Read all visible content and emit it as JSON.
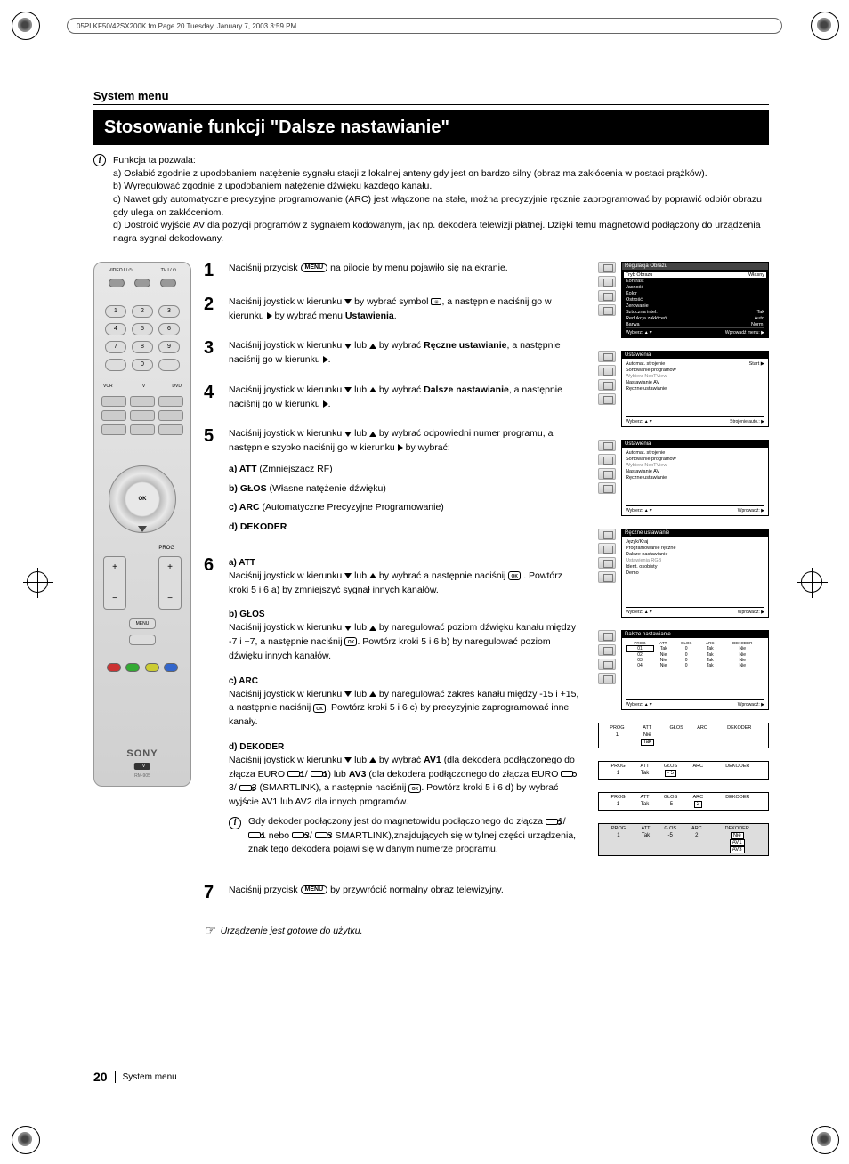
{
  "header_stamp": "05PLKF50/42SX200K.fm  Page 20  Tuesday, January 7, 2003  3:59 PM",
  "section_label": "System menu",
  "title": "Stosowanie funkcji \"Dalsze nastawianie\"",
  "intro_lead": "Funkcja ta pozwala:",
  "intro_a": "a) Osłabić zgodnie z upodobaniem natężenie sygnału stacji z lokalnej anteny gdy jest on bardzo silny (obraz ma zakłócenia w postaci prążków).",
  "intro_b": "b) Wyregulować zgodnie z upodobaniem natężenie dźwięku każdego kanału.",
  "intro_c": "c) Nawet gdy automatyczne precyzyjne programowanie (ARC) jest włączone na stałe, można precyzyjnie ręcznie zaprogramować by poprawić odbiór obrazu gdy ulega on zakłóceniom.",
  "intro_d": "d) Dostroić wyjście AV dla pozycji programów z sygnałem kodowanym, jak np. dekodera telewizji płatnej. Dzięki temu magnetowid podłączony do urządzenia nagra sygnał dekodowany.",
  "step1": "Naciśnij przycisk",
  "step1b": "na pilocie by menu pojawiło się na ekranie.",
  "step2a": "Naciśnij joystick w kierunku",
  "step2b": "by wybrać symbol",
  "step2c": ", a następnie naciśnij go w kierunku",
  "step2d": "by wybrać menu",
  "step2bold": "Ustawienia",
  "step3a": "Naciśnij joystick w kierunku",
  "step3b": "lub",
  "step3c": "by wybrać",
  "step3bold": "Ręczne ustawianie",
  "step3d": ", a następnie naciśnij go w kierunku",
  "step4a": "Naciśnij joystick w kierunku",
  "step4b": "lub",
  "step4c": "by wybrać",
  "step4bold": "Dalsze nastawianie",
  "step4d": ", a następnie naciśnij go w kierunku",
  "step5a": "Naciśnij joystick w kierunku",
  "step5b": "lub",
  "step5c": "by wybrać odpowiedni numer programu, a następnie szybko naciśnij go w kierunku",
  "step5d": "by wybrać:",
  "step5_a_label": "a) ATT",
  "step5_a_desc": "(Zmniejszacz RF)",
  "step5_b_label": "b) GŁOS",
  "step5_b_desc": "(Własne natężenie dźwięku)",
  "step5_c_label": "c) ARC",
  "step5_c_desc": "(Automatyczne Precyzyjne Programowanie)",
  "step5_d_label": "d) DEKODER",
  "step6_a_head": "a) ATT",
  "step6_a_body": "Naciśnij joystick w kierunku",
  "step6_a_body2": "lub",
  "step6_a_body3": "by wybrać  a następnie naciśnij",
  "step6_a_body4": ". Powtórz kroki 5 i 6 a) by zmniejszyć sygnał innych kanałów.",
  "step6_b_head": "b) GŁOS",
  "step6_b_body": "Naciśnij joystick w kierunku",
  "step6_b_body2": "lub",
  "step6_b_body3": "by naregulować poziom dźwięku kanału między -7 i +7, a następnie naciśnij",
  "step6_b_body4": ". Powtórz kroki 5 i 6 b) by naregulować poziom dźwięku innych kanałów.",
  "step6_c_head": "c) ARC",
  "step6_c_body": "Naciśnij joystick w kierunku",
  "step6_c_body2": "lub",
  "step6_c_body3": "by naregulować zakres kanału między -15 i +15, a następnie naciśnij",
  "step6_c_body4": ". Powtórz kroki 5 i 6 c) by precyzyjnie zaprogramować inne kanały.",
  "step6_d_head": "d) DEKODER",
  "step6_d_body": "Naciśnij joystick w kierunku",
  "step6_d_body2": "lub",
  "step6_d_body3": "by wybrać",
  "step6_d_av1": "AV1",
  "step6_d_body4": "(dla dekodera podłączonego do złącza EURO",
  "step6_d_body5": "1/",
  "step6_d_body6": "1) lub",
  "step6_d_av3": "AV3",
  "step6_d_body7": "(dla dekodera podłączonego do złącza EURO",
  "step6_d_body8": "3/",
  "step6_d_body9": "3 (SMARTLINK), a następnie naciśnij",
  "step6_d_body10": ". Powtórz kroki 5 i 6 d) by wybrać wyjście AV1 lub AV2 dla innych programów.",
  "note_text": "Gdy dekoder podłączony jest do magnetowidu podłączonego do złącza",
  "note_text2": "1/",
  "note_text3": "1 nebo",
  "note_text4": "3/",
  "note_text5": "3 SMARTLINK),znajdujących się w tylnej części urządzenia, znak tego dekodera pojawi się w danym numerze programu.",
  "step7a": "Naciśnij przycisk",
  "step7b": "by przywrócić normalny obraz telewizyjny.",
  "ready": "Urządzenie jest gotowe do użytku.",
  "remote": {
    "video_lbl": "VIDEO\nI / ⏻",
    "tv_lbl": "TV\nI / ⏻",
    "sony": "SONY",
    "tv_badge": "TV",
    "model": "RM-905",
    "prog": "PROG",
    "menu_btn": "MENU"
  },
  "menu_pill": "MENU",
  "ok_pill": "OK",
  "osd1": {
    "title": "Regulacja Obrazu",
    "rows": [
      {
        "l": "Tryb Obrazu",
        "r": "Własny",
        "hl": true
      },
      {
        "l": "Kontrast",
        "r": ""
      },
      {
        "l": "Jasność",
        "r": ""
      },
      {
        "l": "Kolor",
        "r": ""
      },
      {
        "l": "Ostrość",
        "r": ""
      },
      {
        "l": "Zerowanie",
        "r": ""
      },
      {
        "l": "Sztuczna intel.",
        "r": "Tak"
      },
      {
        "l": "Redukcja zakłóceń",
        "r": "Auto"
      },
      {
        "l": "Barwa",
        "r": "Norm."
      }
    ],
    "footer_l": "Wybierz: ▲▼",
    "footer_r": "Wprowadź menu: ▶"
  },
  "osd2": {
    "title": "Ustawienia",
    "rows": [
      {
        "l": "Automat. strojenie",
        "r": "Start ▶",
        "hl": true
      },
      {
        "l": "Sortowanie programów",
        "r": ""
      },
      {
        "l": "Wybierz NexTView",
        "r": "- - - - - - -",
        "grey": true
      },
      {
        "l": "Nastawianie AV",
        "r": ""
      },
      {
        "l": "Ręczne ustawianie",
        "r": ""
      }
    ],
    "footer_l": "Wybierz: ▲▼",
    "footer_r": "Strojenie auto.: ▶"
  },
  "osd3": {
    "title": "Ustawienia",
    "rows": [
      {
        "l": "Automat. strojenie",
        "r": ""
      },
      {
        "l": "Sortowanie programów",
        "r": ""
      },
      {
        "l": "Wybierz NexTView",
        "r": "- - - - - - -",
        "grey": true
      },
      {
        "l": "Nastawianie AV",
        "r": ""
      },
      {
        "l": "Ręczne ustawianie",
        "r": "",
        "hl": true
      }
    ],
    "footer_l": "Wybierz: ▲▼",
    "footer_r": "Wprowadź: ▶"
  },
  "osd4": {
    "title": "Ręczne ustawianie",
    "rows": [
      {
        "l": "Język/Kraj",
        "r": ""
      },
      {
        "l": "Programowanie ręczne",
        "r": ""
      },
      {
        "l": "Dalsze nastawianie",
        "r": "",
        "hl": true
      },
      {
        "l": "Ustawienia RGB",
        "r": "",
        "grey": true
      },
      {
        "l": "Ident. osobisty",
        "r": ""
      },
      {
        "l": "Demo",
        "r": ""
      }
    ],
    "footer_l": "Wybierz: ▲▼",
    "footer_r": "Wprowadź: ▶"
  },
  "osd5": {
    "title": "Dalsze nastawianie",
    "headers": [
      "PROG",
      "ATT",
      "GŁOS",
      "ARC",
      "DEKODER"
    ],
    "rows": [
      [
        "01",
        "Tak",
        "0",
        "Tak",
        "Nie"
      ],
      [
        "02",
        "Nie",
        "0",
        "Tak",
        "Nie"
      ],
      [
        "03",
        "Nie",
        "0",
        "Tak",
        "Nie"
      ],
      [
        "04",
        "Nie",
        "0",
        "Tak",
        "Nie"
      ]
    ],
    "footer_l": "Wybierz: ▲▼",
    "footer_r": "Wprowadź: ▶"
  },
  "table_a": {
    "headers": [
      "PROG",
      "ATT",
      "GŁOS",
      "ARC",
      "DEKODER"
    ],
    "row": [
      "1",
      "Nie",
      "",
      "",
      ""
    ],
    "boxed": "Tak"
  },
  "table_b": {
    "headers": [
      "PROG",
      "ATT",
      "GŁOS",
      "ARC",
      "DEKODER"
    ],
    "row": [
      "1",
      "Tak",
      "- 5",
      "",
      ""
    ],
    "boxed_idx": 2
  },
  "table_c": {
    "headers": [
      "PROG",
      "ATT",
      "GŁOS",
      "ARC",
      "DEKODER"
    ],
    "row": [
      "1",
      "Tak",
      "-5",
      "2",
      ""
    ],
    "boxed_idx": 3
  },
  "table_d": {
    "headers": [
      "PROG",
      "ATT",
      "G OS",
      "ARC",
      "DEKODER"
    ],
    "row": [
      "1",
      "Tak",
      "-5",
      "2",
      "Nie"
    ],
    "extra": [
      "AV1",
      "AV3"
    ]
  },
  "footer_page": "20",
  "footer_label": "System menu"
}
